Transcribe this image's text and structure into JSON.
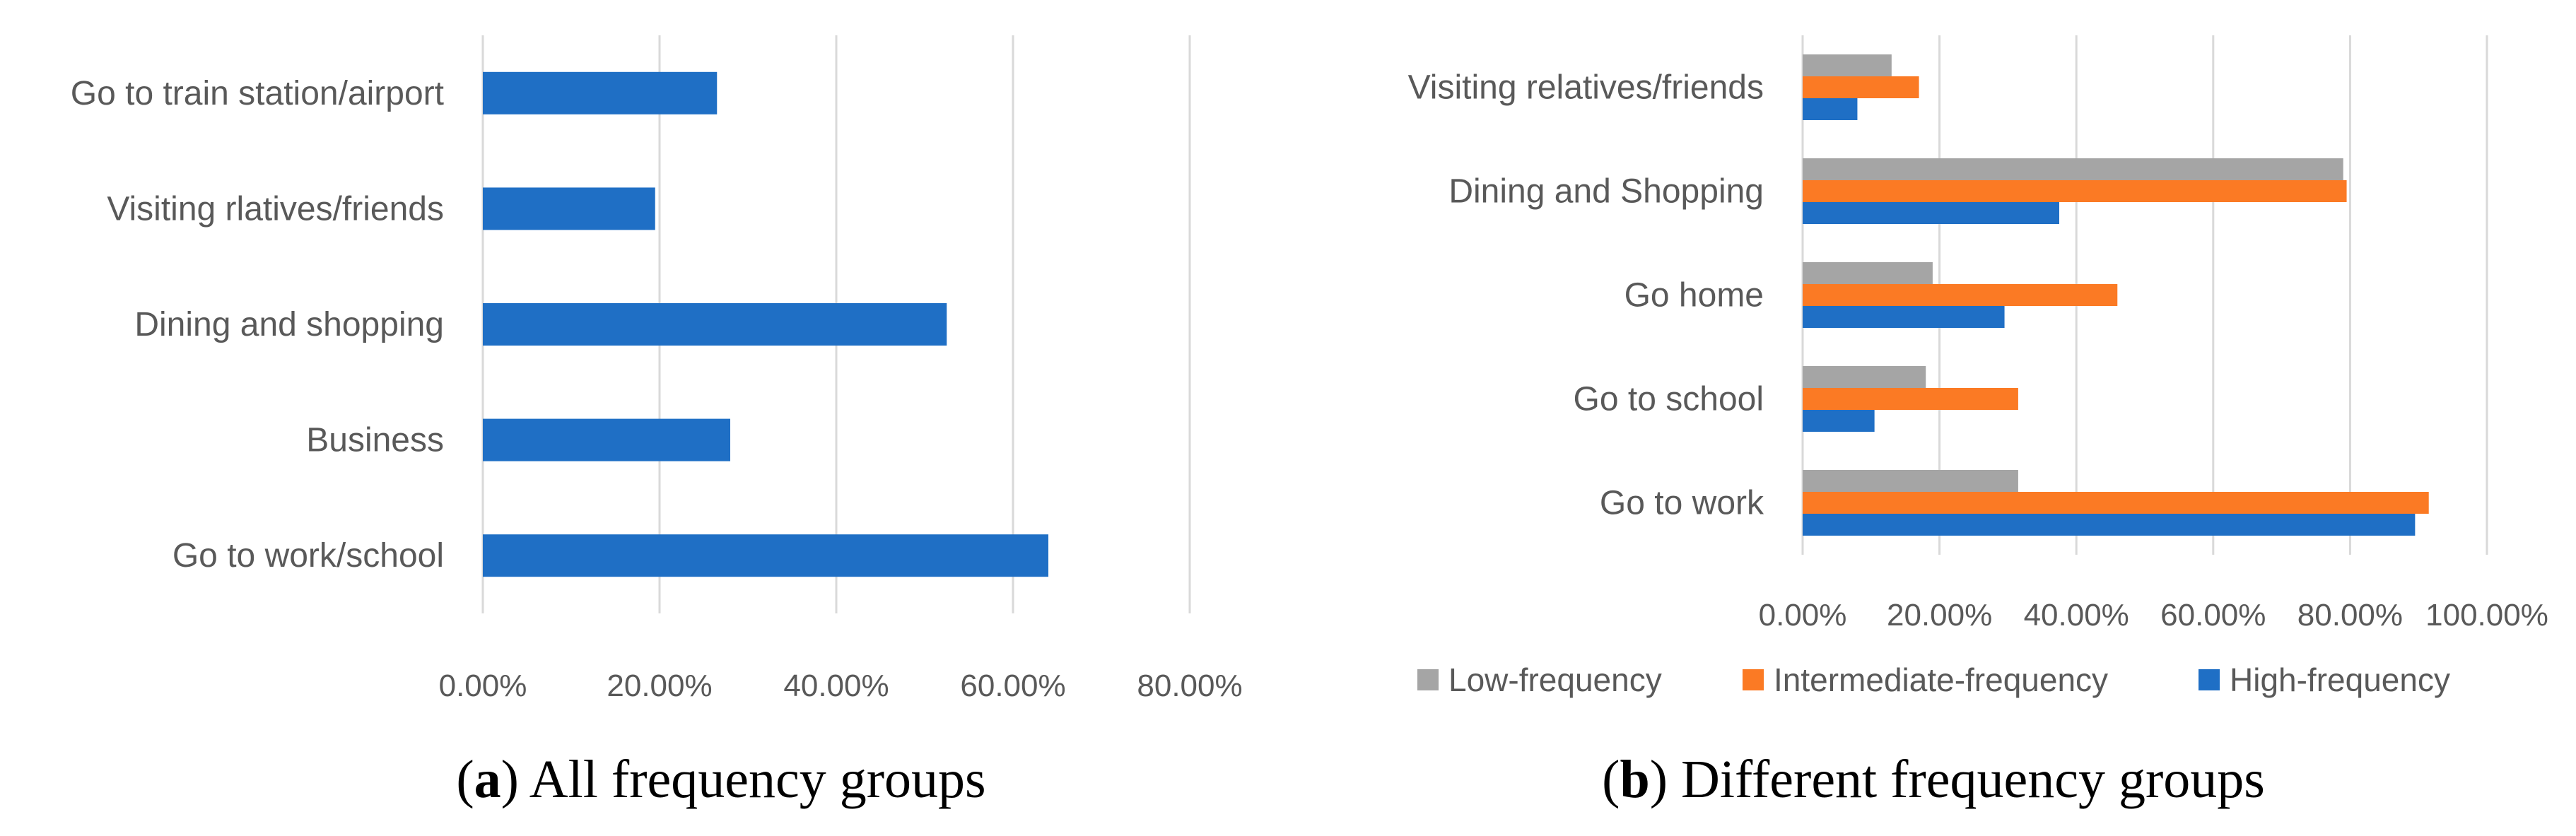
{
  "chart_data": [
    {
      "type": "bar",
      "orientation": "horizontal",
      "caption": {
        "letter": "a",
        "text": "All frequency groups"
      },
      "categories": [
        "Go to train station/airport",
        "Visiting rlatives/friends",
        "Dining and shopping",
        "Business",
        "Go to work/school"
      ],
      "series": [
        {
          "values": [
            26.5,
            19.5,
            52.5,
            28.0,
            64.0
          ]
        }
      ],
      "xlim": [
        0,
        80
      ],
      "xticks": [
        "0.00%",
        "20.00%",
        "40.00%",
        "60.00%",
        "80.00%"
      ],
      "grid": "vertical",
      "legend": "none",
      "colors": [
        "#1f6fc5"
      ]
    },
    {
      "type": "bar",
      "orientation": "horizontal",
      "caption": {
        "letter": "b",
        "text": "Different frequency groups"
      },
      "categories": [
        "Visiting relatives/friends",
        "Dining and Shopping",
        "Go home",
        "Go to school",
        "Go to work"
      ],
      "series": [
        {
          "name": "Low-frequency",
          "color": "#a5a5a5",
          "values": [
            13.0,
            79.0,
            19.0,
            18.0,
            31.5
          ]
        },
        {
          "name": "Intermediate-frequency",
          "color": "#fb7a24",
          "values": [
            17.0,
            79.5,
            46.0,
            31.5,
            91.5
          ]
        },
        {
          "name": "High-frequency",
          "color": "#1f6fc5",
          "values": [
            8.0,
            37.5,
            29.5,
            10.5,
            89.5
          ]
        }
      ],
      "xlim": [
        0,
        100
      ],
      "xticks": [
        "0.00%",
        "20.00%",
        "40.00%",
        "60.00%",
        "80.00%",
        "100.00%"
      ],
      "grid": "vertical",
      "legend": "bottom"
    }
  ]
}
